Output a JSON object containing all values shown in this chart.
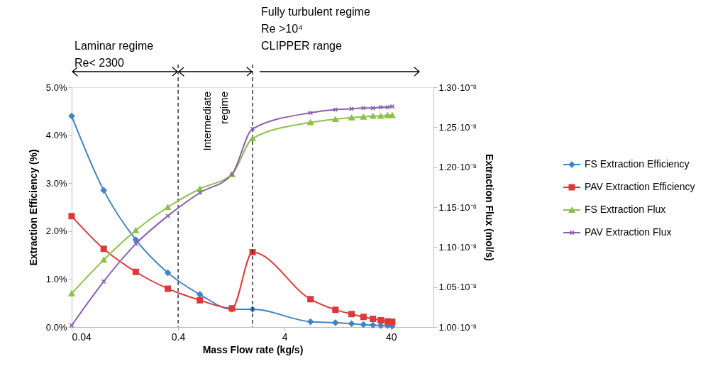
{
  "chart_data": {
    "type": "line",
    "xlabel": "Mass Flow rate (kg/s)",
    "ylabel": "Extraction Efficiency (%)",
    "y2label": "Extraction Flux (mol/s)",
    "x": [
      0.04,
      0.08,
      0.16,
      0.32,
      0.64,
      1.28,
      2,
      7,
      12,
      17,
      22,
      27,
      32,
      37,
      41
    ],
    "series": [
      {
        "name": "FS Extraction Efficiency",
        "color": "#3f84c6",
        "marker": "diamond",
        "values": [
          4.4,
          2.85,
          1.82,
          1.13,
          0.68,
          0.37,
          0.37,
          0.11,
          0.09,
          0.07,
          0.05,
          0.04,
          0.03,
          0.03,
          0.02
        ]
      },
      {
        "name": "PAV Extraction Efficiency",
        "color": "#e0383a",
        "marker": "square",
        "values": [
          2.31,
          1.63,
          1.15,
          0.8,
          0.56,
          0.39,
          1.56,
          0.58,
          0.36,
          0.27,
          0.21,
          0.17,
          0.14,
          0.12,
          0.11
        ]
      },
      {
        "name": "FS Extraction Flux",
        "color": "#8cc04a",
        "marker": "triangle",
        "axis": "y2",
        "values": [
          1.042e-08,
          1.084e-08,
          1.121e-08,
          1.15e-08,
          1.173e-08,
          1.191e-08,
          1.236e-08,
          1.256e-08,
          1.26e-08,
          1.262e-08,
          1.263e-08,
          1.264e-08,
          1.264e-08,
          1.265e-08,
          1.265e-08
        ]
      },
      {
        "name": "PAV Extraction Flux",
        "color": "#8a5fb0",
        "marker": "cross",
        "axis": "y2",
        "values": [
          1.002e-08,
          1.057e-08,
          1.104e-08,
          1.139e-08,
          1.168e-08,
          1.191e-08,
          1.248e-08,
          1.268e-08,
          1.272e-08,
          1.273e-08,
          1.274e-08,
          1.274e-08,
          1.275e-08,
          1.275e-08,
          1.276e-08
        ]
      }
    ],
    "log": "x",
    "xlim": [
      0.04,
      100
    ],
    "xticks": [
      0.04,
      0.4,
      4,
      40
    ],
    "ylim": [
      0,
      5
    ],
    "yticks": [
      {
        "value": 0,
        "label": "0.0%"
      },
      {
        "value": 1,
        "label": "1.0%"
      },
      {
        "value": 2,
        "label": "2.0%"
      },
      {
        "value": 3,
        "label": "3.0%"
      },
      {
        "value": 4,
        "label": "4.0%"
      },
      {
        "value": 5,
        "label": "5.0%"
      }
    ],
    "y2lim": [
      1e-08,
      1.3e-08
    ],
    "y2ticks": [
      {
        "value": 1e-08,
        "label": "1.00·10⁻⁸"
      },
      {
        "value": 1.05e-08,
        "label": "1.05·10⁻⁸"
      },
      {
        "value": 1.1e-08,
        "label": "1.10·10⁻⁸"
      },
      {
        "value": 1.15e-08,
        "label": "1.15·10⁻⁸"
      },
      {
        "value": 1.2e-08,
        "label": "1.20·10⁻⁸"
      },
      {
        "value": 1.25e-08,
        "label": "1.25·10⁻⁸"
      },
      {
        "value": 1.3e-08,
        "label": "1.30·10⁻⁸"
      }
    ],
    "ref_lines": [
      {
        "axis": "x",
        "value": 0.4,
        "color": "#000000",
        "line_style": "dashed"
      },
      {
        "axis": "x",
        "value": 2,
        "color": "#000000",
        "line_style": "dashed"
      }
    ],
    "annotations": [
      "Laminar regime\nRe< 2300",
      "Intermediate\nregime",
      "Fully turbulent regime\nRe >10⁴\nCLIPPER range"
    ],
    "line_style": "solid",
    "grid": false,
    "legend": "right"
  }
}
